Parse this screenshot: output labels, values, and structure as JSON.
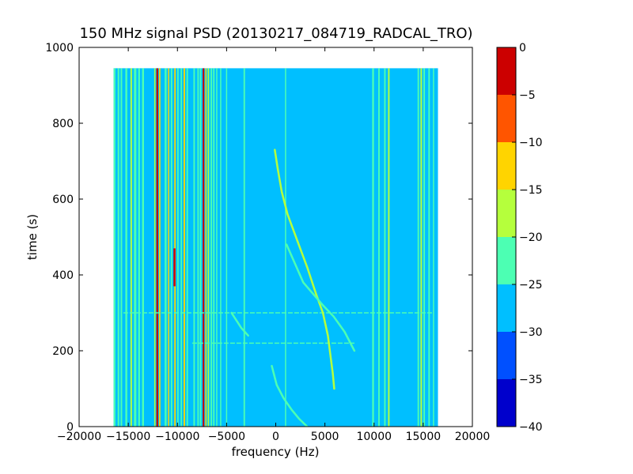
{
  "chart_data": {
    "type": "heatmap",
    "title": "150 MHz signal PSD (20130217_084719_RADCAL_TRO)",
    "xlabel": "frequency (Hz)",
    "ylabel": "time (s)",
    "xlim": [
      -20000,
      20000
    ],
    "ylim": [
      0,
      1000
    ],
    "x_ticks": [
      -20000,
      -15000,
      -10000,
      -5000,
      0,
      5000,
      10000,
      15000,
      20000
    ],
    "x_tick_labels": [
      "−20000",
      "−15000",
      "−10000",
      "−5000",
      "0",
      "5000",
      "10000",
      "15000",
      "20000"
    ],
    "y_ticks": [
      0,
      200,
      400,
      600,
      800,
      1000
    ],
    "y_tick_labels": [
      "0",
      "200",
      "400",
      "600",
      "800",
      "1000"
    ],
    "data_extent": {
      "x": [
        -16500,
        16500
      ],
      "y": [
        0,
        945
      ]
    },
    "background_level": -27.5,
    "background_color": "#00bfff",
    "colorbar": {
      "levels": [
        0,
        -5,
        -10,
        -15,
        -20,
        -25,
        -30,
        -35,
        -40
      ],
      "labels": [
        "0",
        "−5",
        "−10",
        "−15",
        "−20",
        "−25",
        "−30",
        "−35",
        "−40"
      ],
      "colors": [
        "#cc0000",
        "#ff5500",
        "#ffd400",
        "#b5ff3c",
        "#4cffb3",
        "#00bfff",
        "#0050ff",
        "#0000cc"
      ]
    },
    "vertical_lines": [
      {
        "x": -16400,
        "level": -22,
        "width_hz": 180
      },
      {
        "x": -16000,
        "level": -22,
        "width_hz": 160
      },
      {
        "x": -15700,
        "level": -22,
        "width_hz": 160
      },
      {
        "x": -15200,
        "level": -22,
        "width_hz": 200
      },
      {
        "x": -14700,
        "level": -17,
        "width_hz": 160
      },
      {
        "x": -14300,
        "level": -22,
        "width_hz": 250
      },
      {
        "x": -13900,
        "level": -22,
        "width_hz": 180
      },
      {
        "x": -13500,
        "level": -22,
        "width_hz": 200
      },
      {
        "x": -12300,
        "level": -17,
        "width_hz": 120
      },
      {
        "x": -12050,
        "level": -2,
        "width_hz": 180
      },
      {
        "x": -11800,
        "level": -12,
        "width_hz": 140
      },
      {
        "x": -11200,
        "level": -22,
        "width_hz": 200
      },
      {
        "x": -10900,
        "level": -12,
        "width_hz": 120
      },
      {
        "x": -10600,
        "level": -22,
        "width_hz": 150
      },
      {
        "x": -10250,
        "level": -12,
        "width_hz": 140
      },
      {
        "x": -9950,
        "level": -22,
        "width_hz": 140
      },
      {
        "x": -9600,
        "level": -22,
        "width_hz": 140
      },
      {
        "x": -9300,
        "level": -12,
        "width_hz": 150
      },
      {
        "x": -9000,
        "level": -22,
        "width_hz": 150
      },
      {
        "x": -8300,
        "level": -22,
        "width_hz": 150
      },
      {
        "x": -7900,
        "level": -22,
        "width_hz": 150
      },
      {
        "x": -7650,
        "level": -22,
        "width_hz": 150
      },
      {
        "x": -7350,
        "level": -2,
        "width_hz": 160
      },
      {
        "x": -7100,
        "level": -12,
        "width_hz": 120
      },
      {
        "x": -6850,
        "level": -17,
        "width_hz": 140
      },
      {
        "x": -6550,
        "level": -22,
        "width_hz": 150
      },
      {
        "x": -6300,
        "level": -22,
        "width_hz": 150
      },
      {
        "x": -6000,
        "level": -22,
        "width_hz": 120
      },
      {
        "x": -5600,
        "level": -22,
        "width_hz": 120
      },
      {
        "x": -5000,
        "level": -22,
        "width_hz": 120
      },
      {
        "x": -3200,
        "level": -22,
        "width_hz": 150
      },
      {
        "x": 1000,
        "level": -22,
        "width_hz": 120
      },
      {
        "x": 9900,
        "level": -22,
        "width_hz": 180
      },
      {
        "x": 10500,
        "level": -22,
        "width_hz": 150
      },
      {
        "x": 11100,
        "level": -22,
        "width_hz": 150
      },
      {
        "x": 11500,
        "level": -17,
        "width_hz": 160
      },
      {
        "x": 14500,
        "level": -22,
        "width_hz": 150
      },
      {
        "x": 14800,
        "level": -17,
        "width_hz": 160
      },
      {
        "x": 15100,
        "level": -22,
        "width_hz": 150
      },
      {
        "x": 15600,
        "level": -22,
        "width_hz": 150
      },
      {
        "x": 16050,
        "level": -22,
        "width_hz": 120
      }
    ],
    "vertical_line_segments": [
      {
        "x": -10300,
        "y": [
          370,
          470
        ],
        "level": -2,
        "width_hz": 200
      }
    ],
    "curves": [
      {
        "level": -17,
        "points": [
          [
            -100,
            730
          ],
          [
            200,
            680
          ],
          [
            600,
            620
          ],
          [
            1200,
            560
          ],
          [
            2200,
            490
          ],
          [
            3200,
            420
          ],
          [
            4100,
            350
          ],
          [
            4800,
            300
          ],
          [
            5300,
            240
          ],
          [
            5600,
            180
          ],
          [
            5800,
            140
          ],
          [
            5950,
            100
          ]
        ]
      },
      {
        "level": -22,
        "points": [
          [
            -400,
            160
          ],
          [
            100,
            110
          ],
          [
            800,
            75
          ],
          [
            1600,
            45
          ],
          [
            2400,
            20
          ],
          [
            3200,
            0
          ]
        ]
      },
      {
        "level": -22,
        "points": [
          [
            1100,
            480
          ],
          [
            2800,
            380
          ],
          [
            4800,
            320
          ],
          [
            5900,
            290
          ],
          [
            7000,
            250
          ],
          [
            8000,
            200
          ]
        ]
      },
      {
        "level": -22,
        "points": [
          [
            -4500,
            300
          ],
          [
            -3500,
            260
          ],
          [
            -2800,
            240
          ]
        ]
      }
    ],
    "horizontal_lines": [
      {
        "y": 300,
        "x": [
          -15500,
          16000
        ],
        "level": -22
      },
      {
        "y": 220,
        "x": [
          -8500,
          8000
        ],
        "level": -22
      }
    ]
  }
}
